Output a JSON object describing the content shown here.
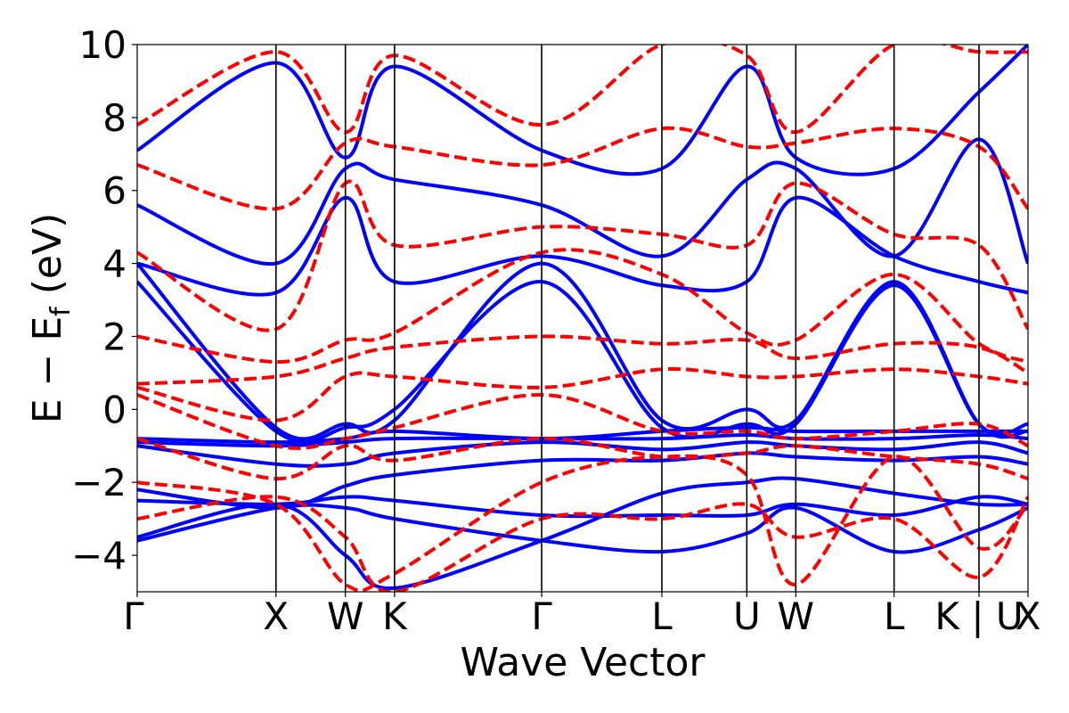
{
  "chart_data": {
    "type": "line",
    "title": "",
    "xlabel": "Wave Vector",
    "ylabel": "E − E",
    "ylabel_sub": "f",
    "ylabel_unit": " (eV)",
    "ylim": [
      -5,
      10
    ],
    "yticks": [
      -4,
      -2,
      0,
      2,
      4,
      6,
      8,
      10
    ],
    "ytick_labels": [
      "−4",
      "−2",
      "0",
      "2",
      "4",
      "6",
      "8",
      "10"
    ],
    "kpoints": [
      {
        "label": "Γ",
        "x": 0.0
      },
      {
        "label": "X",
        "x": 1.0
      },
      {
        "label": "W",
        "x": 1.5
      },
      {
        "label": "K",
        "x": 1.854
      },
      {
        "label": "Γ",
        "x": 2.914
      },
      {
        "label": "L",
        "x": 3.78
      },
      {
        "label": "U",
        "x": 4.392
      },
      {
        "label": "W",
        "x": 4.745
      },
      {
        "label": "L",
        "x": 5.453
      },
      {
        "label": "K | U",
        "x": 6.065
      },
      {
        "label": "X",
        "x": 6.418
      }
    ],
    "grid": false,
    "legend": "none",
    "series_styles": [
      {
        "color": "#0000ff",
        "style": "solid"
      },
      {
        "color": "#ff0000",
        "style": "dashed"
      }
    ],
    "series": [
      {
        "style": 0,
        "bands": [
          {
            "x": [
              0,
              1,
              1.5,
              1.854,
              2.914,
              3.78,
              4.392,
              4.745,
              5.453,
              6.065,
              6.418
            ],
            "y": [
              -3.6,
              -2.7,
              -2.7,
              -3.0,
              -3.6,
              -3.9,
              -3.4,
              -2.7,
              -3.9,
              -3.3,
              -2.7
            ]
          },
          {
            "x": [
              0,
              1,
              1.5,
              1.854,
              2.914,
              3.78,
              4.392,
              4.745,
              5.453,
              6.065,
              6.418
            ],
            "y": [
              -3.5,
              -2.6,
              -4.0,
              -4.9,
              -3.6,
              -2.3,
              -2.0,
              -1.9,
              -2.3,
              -2.6,
              -2.6
            ]
          },
          {
            "x": [
              0,
              1,
              1.5,
              1.854,
              2.914,
              3.78,
              4.392,
              4.745,
              5.453,
              6.065,
              6.418
            ],
            "y": [
              -2.5,
              -2.6,
              -2.4,
              -2.5,
              -2.9,
              -2.9,
              -2.9,
              -2.6,
              -2.9,
              -2.4,
              -2.6
            ]
          },
          {
            "x": [
              0,
              1,
              1.5,
              1.854,
              2.914,
              3.78,
              4.392,
              4.745,
              5.453,
              6.065,
              6.418
            ],
            "y": [
              -2.2,
              -2.7,
              -2.1,
              -1.8,
              -1.4,
              -1.4,
              -1.2,
              -1.3,
              -1.4,
              -1.3,
              -1.5
            ]
          },
          {
            "x": [
              0,
              1,
              1.5,
              1.854,
              2.914,
              3.78,
              4.392,
              4.745,
              5.453,
              6.065,
              6.418
            ],
            "y": [
              -1.0,
              -1.5,
              -1.5,
              -1.2,
              -0.9,
              -1.1,
              -0.9,
              -1.0,
              -1.1,
              -0.9,
              -1.2
            ]
          },
          {
            "x": [
              0,
              1,
              1.5,
              1.854,
              2.914,
              3.78,
              4.392,
              4.745,
              5.453,
              6.065,
              6.418
            ],
            "y": [
              -0.9,
              -1.0,
              -0.9,
              -0.8,
              -0.8,
              -0.8,
              -0.7,
              -0.8,
              -0.8,
              -0.7,
              -0.8
            ]
          },
          {
            "x": [
              0,
              1,
              1.5,
              1.854,
              2.914,
              3.78,
              4.392,
              4.745,
              5.453,
              6.065,
              6.418
            ],
            "y": [
              -0.8,
              -0.9,
              -0.8,
              -0.6,
              -0.8,
              -0.6,
              -0.5,
              -0.6,
              -0.6,
              -0.6,
              -0.6
            ]
          },
          {
            "x": [
              0,
              1,
              1.5,
              1.854,
              2.914,
              3.78,
              4.392,
              4.745,
              5.453,
              6.065,
              6.418
            ],
            "y": [
              3.5,
              -0.6,
              -0.5,
              0.0,
              3.5,
              -0.5,
              -0.4,
              -0.4,
              3.4,
              -0.4,
              -0.4
            ]
          },
          {
            "x": [
              0,
              1,
              1.5,
              1.854,
              2.914,
              3.78,
              4.392,
              4.745,
              5.453,
              6.065,
              6.418
            ],
            "y": [
              4.0,
              -0.5,
              -0.4,
              -0.3,
              4.0,
              -0.3,
              0.0,
              -0.3,
              3.5,
              -0.4,
              -0.6
            ]
          },
          {
            "x": [
              0,
              1,
              1.5,
              1.854,
              2.914,
              3.78,
              4.392,
              4.745,
              5.453,
              6.065,
              6.418
            ],
            "y": [
              4.0,
              3.2,
              5.8,
              3.5,
              4.2,
              3.4,
              3.5,
              5.8,
              4.2,
              3.5,
              3.2
            ]
          },
          {
            "x": [
              0,
              1,
              1.5,
              1.854,
              2.914,
              3.78,
              4.392,
              4.745,
              5.453,
              6.065,
              6.418
            ],
            "y": [
              5.6,
              4.0,
              6.6,
              6.3,
              5.6,
              4.2,
              6.3,
              6.6,
              4.2,
              7.4,
              4.0
            ]
          },
          {
            "x": [
              0,
              1,
              1.5,
              1.854,
              2.914,
              3.78,
              4.392,
              4.745,
              5.453,
              6.065,
              6.418
            ],
            "y": [
              7.1,
              9.5,
              6.9,
              9.4,
              7.1,
              6.6,
              9.4,
              6.9,
              6.6,
              8.7,
              10.0
            ]
          }
        ]
      },
      {
        "style": 1,
        "bands": [
          {
            "x": [
              0,
              1,
              1.5,
              1.854,
              2.914,
              3.78,
              4.392,
              4.745,
              5.453,
              6.065,
              6.418
            ],
            "y": [
              -3.0,
              -2.4,
              -3.5,
              -5.0,
              -3.0,
              -3.0,
              -2.6,
              -3.5,
              -3.0,
              -4.6,
              -2.4
            ]
          },
          {
            "x": [
              0,
              1,
              1.5,
              1.854,
              2.914,
              3.78,
              4.392,
              4.745,
              5.453,
              6.065,
              6.418
            ],
            "y": [
              -2.0,
              -2.6,
              -4.8,
              -4.5,
              -2.0,
              -1.3,
              -1.8,
              -4.8,
              -1.3,
              -3.8,
              -2.6
            ]
          },
          {
            "x": [
              0,
              1,
              1.5,
              1.854,
              2.914,
              3.78,
              4.392,
              4.745,
              5.453,
              6.065,
              6.418
            ],
            "y": [
              -0.8,
              -1.9,
              -1.0,
              -1.4,
              -0.8,
              -1.3,
              -1.2,
              -1.0,
              -1.3,
              -1.5,
              -1.9
            ]
          },
          {
            "x": [
              0,
              1,
              1.5,
              1.854,
              2.914,
              3.78,
              4.392,
              4.745,
              5.453,
              6.065,
              6.418
            ],
            "y": [
              0.4,
              -1.0,
              -0.8,
              -0.5,
              0.4,
              -0.6,
              -0.6,
              -0.8,
              -0.6,
              -0.4,
              -1.0
            ]
          },
          {
            "x": [
              0,
              1,
              1.5,
              1.854,
              2.914,
              3.78,
              4.392,
              4.745,
              5.453,
              6.065,
              6.418
            ],
            "y": [
              0.6,
              -0.3,
              0.9,
              0.9,
              0.6,
              1.1,
              0.9,
              0.9,
              1.1,
              0.9,
              0.7
            ]
          },
          {
            "x": [
              0,
              1,
              1.5,
              1.854,
              2.914,
              3.78,
              4.392,
              4.745,
              5.453,
              6.065,
              6.418
            ],
            "y": [
              0.7,
              0.9,
              1.4,
              1.7,
              2.0,
              1.8,
              1.9,
              1.4,
              1.8,
              1.7,
              1.0
            ]
          },
          {
            "x": [
              0,
              1,
              1.5,
              1.854,
              2.914,
              3.78,
              4.392,
              4.745,
              5.453,
              6.065,
              6.418
            ],
            "y": [
              2.0,
              1.3,
              1.9,
              2.1,
              4.3,
              3.7,
              2.1,
              1.9,
              3.7,
              1.8,
              1.3
            ]
          },
          {
            "x": [
              0,
              1,
              1.5,
              1.854,
              2.914,
              3.78,
              4.392,
              4.745,
              5.453,
              6.065,
              6.418
            ],
            "y": [
              4.3,
              2.2,
              6.2,
              4.5,
              5.0,
              4.8,
              4.5,
              6.2,
              4.8,
              4.5,
              2.2
            ]
          },
          {
            "x": [
              0,
              1,
              1.5,
              1.854,
              2.914,
              3.78,
              4.392,
              4.745,
              5.453,
              6.065,
              6.418
            ],
            "y": [
              6.7,
              5.5,
              7.3,
              7.2,
              6.7,
              7.7,
              7.2,
              7.3,
              7.7,
              7.2,
              5.5
            ]
          },
          {
            "x": [
              0,
              1,
              1.5,
              1.854,
              2.914,
              3.78,
              4.392,
              4.745,
              5.453,
              6.065,
              6.418
            ],
            "y": [
              7.8,
              9.8,
              7.6,
              9.7,
              7.8,
              10.0,
              9.7,
              7.6,
              10.0,
              9.8,
              9.8
            ]
          }
        ]
      }
    ]
  }
}
